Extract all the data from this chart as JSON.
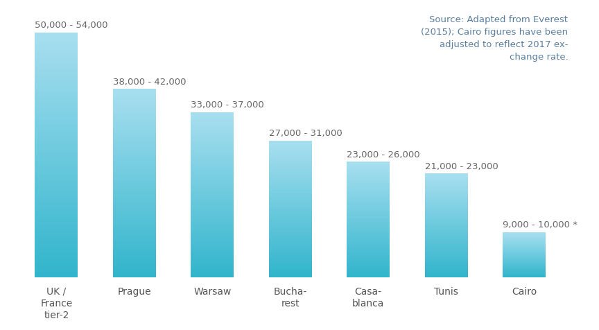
{
  "categories": [
    "UK /\nFrance\ntier-2",
    "Prague",
    "Warsaw",
    "Bucha-\nrest",
    "Casa-\nblanca",
    "Tunis",
    "Cairo"
  ],
  "values": [
    52000,
    40000,
    35000,
    29000,
    24500,
    22000,
    9500
  ],
  "bar_labels": [
    "50,000 - 54,000",
    "38,000 - 42,000",
    "33,000 - 37,000",
    "27,000 - 31,000",
    "23,000 - 26,000",
    "21,000 - 23,000",
    "9,000 - 10,000 *"
  ],
  "bar_color_top": "#a8dff0",
  "bar_color_bottom": "#31b5cc",
  "background_color": "#ffffff",
  "source_text": "Source: Adapted from Everest\n(2015); Cairo figures have been\nadjusted to reflect 2017 ex-\nchange rate.",
  "source_color": "#5a7fa0",
  "label_color": "#666666",
  "tick_color": "#555555",
  "ylim": [
    0,
    57000
  ],
  "label_fontsize": 9.5,
  "tick_fontsize": 10,
  "source_fontsize": 9.5,
  "bar_width": 0.55,
  "figsize": [
    8.64,
    4.76
  ],
  "dpi": 100
}
